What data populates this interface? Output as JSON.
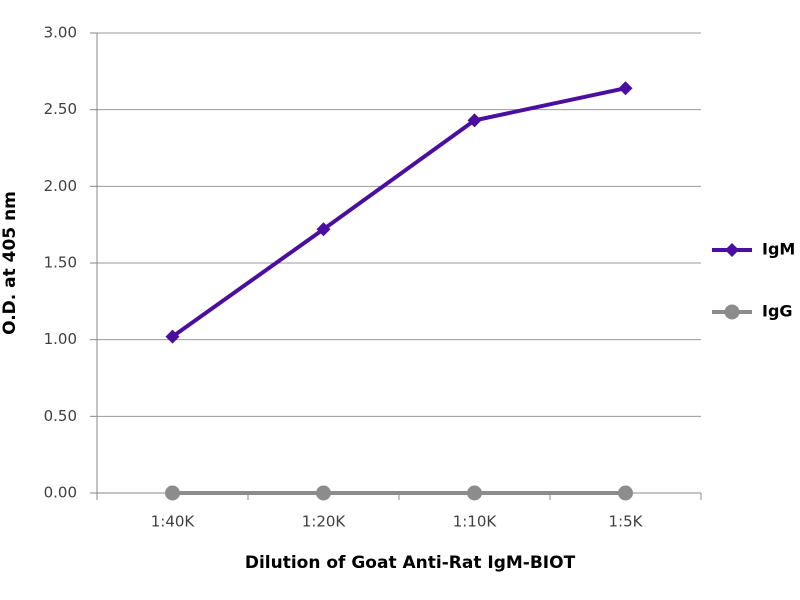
{
  "chart_data": {
    "type": "line",
    "x_label": "Dilution of Goat Anti-Rat IgM-BIOT",
    "y_label": "O.D. at 405 nm",
    "categories": [
      "1:40K",
      "1:20K",
      "1:10K",
      "1:5K"
    ],
    "series": [
      {
        "name": "IgM",
        "color": "#4b0fa0",
        "marker": "diamond",
        "values": [
          1.02,
          1.72,
          2.43,
          2.64
        ]
      },
      {
        "name": "IgG",
        "color": "#8c8c8c",
        "marker": "circle",
        "values": [
          0,
          0,
          0,
          0
        ]
      }
    ],
    "ylim": [
      0,
      3
    ],
    "yticks": [
      {
        "value": 0,
        "label": "0.00"
      },
      {
        "value": 0.5,
        "label": "0.50"
      },
      {
        "value": 1,
        "label": "1.00"
      },
      {
        "value": 1.5,
        "label": "1.50"
      },
      {
        "value": 2,
        "label": "2.00"
      },
      {
        "value": 2.5,
        "label": "2.50"
      },
      {
        "value": 3,
        "label": "3.00"
      }
    ],
    "grid": true,
    "legend": "right"
  }
}
